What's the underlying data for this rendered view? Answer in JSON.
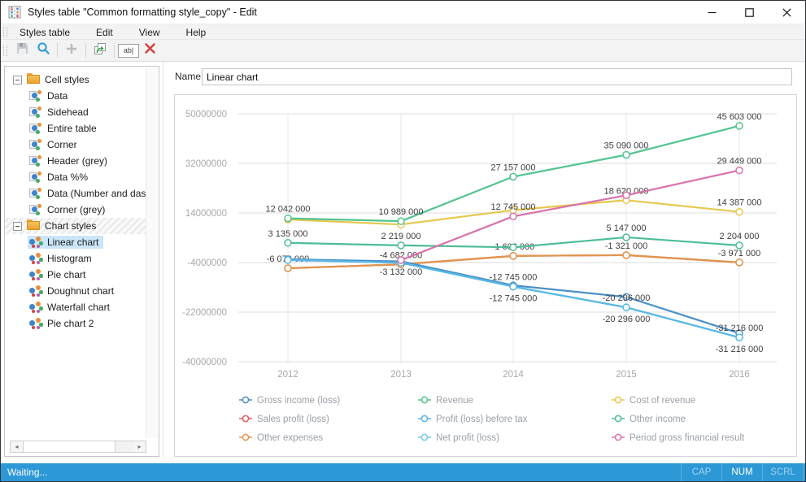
{
  "window": {
    "title": "Styles table \"Common formatting style_copy\" - Edit"
  },
  "menu": {
    "items": [
      "Styles table",
      "Edit",
      "View",
      "Help"
    ]
  },
  "toolbar": {
    "rename_glyph": "ab|",
    "buttons": [
      {
        "name": "save",
        "disabled": true
      },
      {
        "name": "search",
        "disabled": false
      },
      {
        "name": "add",
        "disabled": true
      },
      {
        "name": "duplicate",
        "disabled": false
      },
      {
        "name": "rename",
        "disabled": false
      },
      {
        "name": "delete",
        "disabled": false
      }
    ]
  },
  "tree": {
    "groups": [
      {
        "label": "Cell styles",
        "expanded": true,
        "hatched": false,
        "items": [
          {
            "label": "Data",
            "selected": false
          },
          {
            "label": "Sidehead",
            "selected": false
          },
          {
            "label": "Entire table",
            "selected": false
          },
          {
            "label": "Corner",
            "selected": false
          },
          {
            "label": "Header (grey)",
            "selected": false
          },
          {
            "label": "Data %%",
            "selected": false
          },
          {
            "label": "Data (Number and dash",
            "selected": false
          },
          {
            "label": "Corner (grey)",
            "selected": false
          }
        ]
      },
      {
        "label": "Chart styles",
        "expanded": true,
        "hatched": true,
        "items": [
          {
            "label": "Linear chart",
            "selected": true
          },
          {
            "label": "Histogram",
            "selected": false
          },
          {
            "label": "Pie chart",
            "selected": false
          },
          {
            "label": "Doughnut chart",
            "selected": false
          },
          {
            "label": "Waterfall chart",
            "selected": false
          },
          {
            "label": "Pie chart 2",
            "selected": false
          }
        ]
      }
    ]
  },
  "name_field": {
    "label": "Name:",
    "value": "Linear chart"
  },
  "chart_data": {
    "type": "line",
    "x_categories": [
      "2012",
      "2013",
      "2014",
      "2015",
      "2016"
    ],
    "y_ticks": [
      "50000000",
      "32000000",
      "14000000",
      "-4000000",
      "-22000000",
      "-40000000"
    ],
    "ylim": [
      -40000000,
      50000000
    ],
    "grid": true,
    "legend_position": "bottom",
    "series": [
      {
        "name": "Sales profit (loss)",
        "color": "#e25b5b",
        "values": [
          -6079000,
          -4682000,
          -1606000,
          -1321000,
          -3971000
        ],
        "labels": [
          "",
          "",
          "",
          "",
          ""
        ],
        "label_sides": [
          "",
          "",
          "",
          "",
          ""
        ]
      },
      {
        "name": "Other expenses",
        "color": "#e0954e",
        "values": [
          -6079000,
          -4682000,
          -1606000,
          -1321000,
          -3971000
        ],
        "labels": [
          "-6 079 000",
          "-4 682 000",
          "-1 606 000",
          "-1 321 000",
          "-3 971 000"
        ],
        "label_sides": [
          "a",
          "a",
          "a",
          "a",
          "a"
        ]
      },
      {
        "name": "Gross income (loss)",
        "color": "#4a90c8",
        "values": [
          -2800000,
          -3600000,
          -12300000,
          -16500000,
          -29700000
        ],
        "labels": [
          "",
          "",
          "",
          "",
          ""
        ],
        "label_sides": [
          "",
          "",
          "",
          "",
          ""
        ]
      },
      {
        "name": "Net profit (loss)",
        "color": "#79c9ea",
        "values": [
          -3100000,
          -4100000,
          -12745000,
          -20296000,
          -31216000
        ],
        "labels": [
          "",
          "",
          "-12 745 000",
          "-20 296 000",
          "-31 216 000"
        ],
        "label_sides": [
          "",
          "",
          "b",
          "b",
          "b"
        ]
      },
      {
        "name": "Profit (loss) before tax",
        "color": "#58b8e4",
        "values": [
          -3100000,
          -4100000,
          -12745000,
          -20296000,
          -31216000
        ],
        "labels": [
          "",
          "",
          "-12 745 000",
          "-20 296 000",
          "-31 216 000"
        ],
        "label_sides": [
          "",
          "",
          "a",
          "a",
          "a"
        ]
      },
      {
        "name": "Other income",
        "color": "#4cbd96",
        "values": [
          3135000,
          2219000,
          1500000,
          5147000,
          2204000
        ],
        "labels": [
          "3 135 000",
          "2 219 000",
          "",
          "5 147 000",
          "2 204 000"
        ],
        "label_sides": [
          "a",
          "a",
          "",
          "a",
          "a"
        ]
      },
      {
        "name": "Cost of revenue",
        "color": "#e5c84e",
        "values": [
          11600000,
          9800000,
          15000000,
          18620000,
          14387000
        ],
        "labels": [
          "",
          "",
          "",
          "18 620 000",
          "14 387 000"
        ],
        "label_sides": [
          "",
          "",
          "",
          "a",
          "a"
        ]
      },
      {
        "name": "Period gross financial result",
        "color": "#d873aa",
        "values": [
          null,
          -3132000,
          12745000,
          20400000,
          29449000
        ],
        "labels": [
          "",
          "-3 132 000",
          "12 745 000",
          "",
          "29 449 000"
        ],
        "label_sides": [
          "",
          "b",
          "a",
          "",
          "a"
        ]
      },
      {
        "name": "Revenue",
        "color": "#52c48e",
        "values": [
          12042000,
          10989000,
          27157000,
          35090000,
          45603000
        ],
        "labels": [
          "12 042 000",
          "10 989 000",
          "27 157 000",
          "35 090 000",
          "45 603 000"
        ],
        "label_sides": [
          "a",
          "a",
          "a",
          "a",
          "a"
        ]
      }
    ],
    "legend": [
      {
        "label": "Gross income (loss)",
        "color": "#4a90c8"
      },
      {
        "label": "Revenue",
        "color": "#52c48e"
      },
      {
        "label": "Cost of revenue",
        "color": "#e5c84e"
      },
      {
        "label": "Sales profit (loss)",
        "color": "#e25b5b"
      },
      {
        "label": "Profit (loss) before tax",
        "color": "#58b8e4"
      },
      {
        "label": "Other income",
        "color": "#4cbd96"
      },
      {
        "label": "Other expenses",
        "color": "#e0954e"
      },
      {
        "label": "Net profit (loss)",
        "color": "#79c9ea"
      },
      {
        "label": "Period gross financial result",
        "color": "#d873aa"
      }
    ]
  },
  "status_bar": {
    "text": "Waiting...",
    "indicators": [
      {
        "label": "CAP",
        "active": false
      },
      {
        "label": "NUM",
        "active": true
      },
      {
        "label": "SCRL",
        "active": false
      }
    ]
  }
}
